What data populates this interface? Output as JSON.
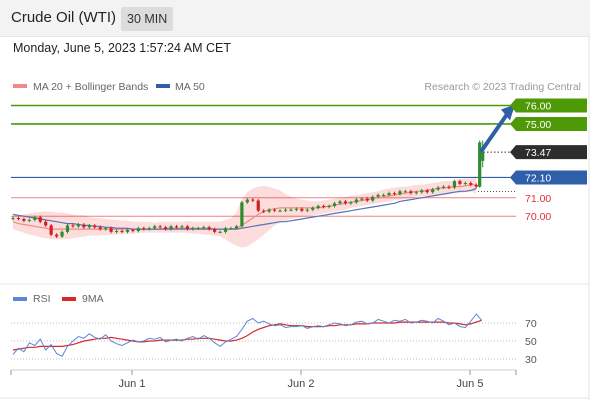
{
  "header": {
    "instrument": "Crude Oil (WTI)",
    "timeframe": "30 MIN"
  },
  "datetime": "Monday, June 5, 2023 1:57:24 AM CET",
  "colors": {
    "accent_green": "#4e9a06",
    "accent_blue": "#2f5fa8",
    "current_price_bg": "#2d2d2d",
    "support_red": "#e03131",
    "bollinger_fill": "#fbd7d5",
    "ma20": "#f08a86",
    "ma50": "#5674b8",
    "rsi": "#5b87d6",
    "rsi_ma": "#d62a2a",
    "candle_up": "#2e8b2e",
    "candle_down": "#d21f1f"
  },
  "chart_data": [
    {
      "type": "candlestick",
      "legend": [
        {
          "label": "MA 20 + Bollinger Bands",
          "icon": "pink-line-icon"
        },
        {
          "label": "MA 50",
          "icon": "blue-line-icon"
        }
      ],
      "watermark": "Research © 2023 Trading Central",
      "x_ticks": [
        "Jun 1",
        "Jun 2",
        "Jun 5"
      ],
      "current_price": 73.47,
      "levels": [
        {
          "value": 76.0,
          "label": "76.00",
          "kind": "resistance"
        },
        {
          "value": 75.0,
          "label": "75.00",
          "kind": "resistance"
        },
        {
          "value": 72.1,
          "label": "72.10",
          "kind": "pivot"
        },
        {
          "value": 71.0,
          "label": "71.00",
          "kind": "support"
        },
        {
          "value": 70.0,
          "label": "70.00",
          "kind": "support"
        }
      ],
      "close": [
        69.9,
        69.85,
        69.75,
        69.8,
        69.95,
        69.7,
        69.5,
        69.0,
        68.9,
        69.15,
        69.5,
        69.45,
        69.55,
        69.4,
        69.5,
        69.4,
        69.3,
        69.35,
        69.15,
        69.2,
        69.15,
        69.25,
        69.2,
        69.35,
        69.3,
        69.35,
        69.45,
        69.4,
        69.3,
        69.45,
        69.4,
        69.45,
        69.3,
        69.35,
        69.35,
        69.4,
        69.3,
        69.15,
        69.15,
        69.35,
        69.35,
        69.45,
        70.75,
        70.9,
        70.85,
        70.3,
        70.25,
        70.35,
        70.3,
        70.3,
        70.35,
        70.35,
        70.4,
        70.3,
        70.35,
        70.45,
        70.55,
        70.5,
        70.55,
        70.7,
        70.8,
        70.7,
        70.75,
        70.9,
        70.95,
        70.85,
        71.05,
        71.15,
        71.15,
        71.25,
        71.2,
        71.35,
        71.35,
        71.25,
        71.3,
        71.4,
        71.3,
        71.45,
        71.55,
        71.6,
        71.55,
        71.9,
        71.75,
        71.8,
        71.7,
        71.6
      ],
      "last_candle": {
        "open": 73.0,
        "high": 74.1,
        "low": 72.65,
        "close": 73.47
      },
      "bollinger_upper": [
        70.05,
        70.05,
        70.1,
        70.15,
        70.2,
        70.25,
        70.25,
        70.25,
        70.2,
        70.2,
        70.15,
        70.1,
        70.05,
        70.05,
        69.95,
        69.9,
        69.9,
        69.85,
        69.8,
        69.8,
        69.75,
        69.75,
        69.7,
        69.7,
        69.7,
        69.7,
        69.65,
        69.7,
        69.7,
        69.7,
        69.7,
        69.7,
        69.75,
        69.7,
        69.7,
        69.7,
        69.7,
        69.7,
        69.7,
        69.8,
        69.9,
        70.2,
        70.95,
        71.3,
        71.5,
        71.6,
        71.65,
        71.6,
        71.5,
        71.4,
        71.2,
        71.05,
        70.95,
        70.9,
        70.85,
        70.8,
        70.8,
        70.85,
        70.9,
        70.95,
        71.0,
        71.05,
        71.1,
        71.15,
        71.2,
        71.25,
        71.3,
        71.35,
        71.45,
        71.5,
        71.55,
        71.6,
        71.6,
        71.65,
        71.7,
        71.7,
        71.75,
        71.8,
        71.85,
        71.9,
        71.9,
        71.95,
        72.0,
        72.05,
        72.05,
        72.2
      ],
      "bollinger_lower": [
        69.3,
        69.2,
        69.1,
        69.0,
        68.95,
        68.85,
        68.8,
        68.75,
        68.75,
        68.75,
        68.75,
        68.8,
        68.85,
        68.9,
        68.95,
        68.95,
        68.95,
        69.0,
        69.0,
        69.0,
        69.05,
        69.05,
        69.05,
        69.1,
        69.1,
        69.1,
        69.1,
        69.1,
        69.1,
        69.1,
        69.1,
        69.1,
        69.1,
        69.05,
        69.05,
        69.0,
        69.0,
        68.95,
        68.9,
        68.75,
        68.55,
        68.4,
        68.3,
        68.35,
        68.55,
        68.75,
        69.0,
        69.25,
        69.5,
        69.65,
        69.75,
        69.85,
        69.9,
        69.95,
        70.0,
        70.05,
        70.1,
        70.15,
        70.2,
        70.25,
        70.3,
        70.35,
        70.45,
        70.5,
        70.55,
        70.6,
        70.65,
        70.7,
        70.75,
        70.8,
        70.85,
        70.9,
        70.95,
        71.0,
        71.05,
        71.05,
        71.1,
        71.1,
        71.15,
        71.2,
        71.2,
        71.25,
        71.25,
        71.3,
        71.35,
        71.2
      ],
      "ma20": [
        69.7,
        69.6,
        69.55,
        69.5,
        69.45,
        69.4,
        69.35,
        69.3,
        69.3,
        69.3,
        69.3,
        69.3,
        69.3,
        69.3,
        69.3,
        69.3,
        69.3,
        69.3,
        69.3,
        69.3,
        69.3,
        69.3,
        69.3,
        69.3,
        69.3,
        69.3,
        69.3,
        69.3,
        69.35,
        69.35,
        69.35,
        69.35,
        69.35,
        69.35,
        69.35,
        69.35,
        69.35,
        69.3,
        69.3,
        69.3,
        69.3,
        69.35,
        69.5,
        69.7,
        69.9,
        70.1,
        70.25,
        70.35,
        70.4,
        70.45,
        70.45,
        70.45,
        70.45,
        70.45,
        70.45,
        70.45,
        70.45,
        70.5,
        70.55,
        70.6,
        70.65,
        70.7,
        70.75,
        70.8,
        70.85,
        70.9,
        70.95,
        71.0,
        71.05,
        71.1,
        71.15,
        71.2,
        71.25,
        71.3,
        71.35,
        71.35,
        71.4,
        71.45,
        71.5,
        71.55,
        71.55,
        71.6,
        71.6,
        71.65,
        71.7,
        71.7
      ],
      "ma50": [
        70.1,
        70.05,
        70.0,
        69.95,
        69.9,
        69.85,
        69.8,
        69.75,
        69.7,
        69.65,
        69.6,
        69.6,
        69.55,
        69.5,
        69.5,
        69.45,
        69.45,
        69.4,
        69.4,
        69.35,
        69.35,
        69.35,
        69.3,
        69.3,
        69.3,
        69.3,
        69.3,
        69.3,
        69.3,
        69.3,
        69.3,
        69.3,
        69.3,
        69.3,
        69.3,
        69.3,
        69.3,
        69.3,
        69.3,
        69.3,
        69.3,
        69.3,
        69.35,
        69.4,
        69.45,
        69.5,
        69.55,
        69.6,
        69.65,
        69.7,
        69.7,
        69.75,
        69.8,
        69.85,
        69.9,
        69.95,
        70.0,
        70.05,
        70.1,
        70.15,
        70.2,
        70.25,
        70.3,
        70.35,
        70.4,
        70.45,
        70.5,
        70.55,
        70.6,
        70.65,
        70.7,
        70.8,
        70.85,
        70.9,
        70.95,
        71.0,
        71.05,
        71.1,
        71.15,
        71.2,
        71.25,
        71.3,
        71.35,
        71.35,
        71.4,
        71.5
      ],
      "target_arrow": {
        "from": 73.47,
        "to": 76.0
      }
    },
    {
      "type": "line",
      "legend": [
        {
          "label": "RSI",
          "icon": "blue-line-icon"
        },
        {
          "label": "9MA",
          "icon": "red-line-icon"
        }
      ],
      "y_ticks": [
        "70",
        "50",
        "30"
      ],
      "ylim": [
        20,
        85
      ],
      "series": [
        {
          "name": "RSI",
          "values": [
            35,
            42,
            38,
            48,
            45,
            52,
            40,
            46,
            36,
            33,
            44,
            50,
            55,
            53,
            58,
            54,
            52,
            57,
            50,
            47,
            45,
            48,
            51,
            49,
            50,
            53,
            52,
            54,
            49,
            51,
            52,
            50,
            53,
            55,
            52,
            56,
            53,
            48,
            44,
            49,
            52,
            55,
            63,
            72,
            75,
            70,
            72,
            69,
            67,
            68,
            65,
            66,
            66,
            67,
            64,
            66,
            67,
            66,
            68,
            70,
            69,
            67,
            68,
            71,
            72,
            69,
            70,
            74,
            72,
            70,
            73,
            72,
            74,
            70,
            71,
            73,
            72,
            70,
            75,
            72,
            68,
            70,
            66,
            65,
            72,
            80,
            73
          ]
        },
        {
          "name": "9MA",
          "values": [
            40,
            41,
            42,
            43,
            43,
            44,
            44,
            44,
            44,
            44,
            45,
            46,
            48,
            50,
            51,
            52,
            53,
            53,
            54,
            53,
            52,
            51,
            50,
            49,
            49,
            50,
            50,
            51,
            51,
            51,
            51,
            51,
            52,
            52,
            53,
            53,
            53,
            52,
            51,
            50,
            50,
            51,
            53,
            56,
            60,
            63,
            65,
            67,
            68,
            69,
            68,
            67,
            67,
            67,
            66,
            66,
            66,
            66,
            67,
            67,
            68,
            68,
            68,
            69,
            69,
            69,
            70,
            70,
            70,
            70,
            70,
            71,
            71,
            71,
            71,
            71,
            71,
            71,
            71,
            71,
            70,
            70,
            69,
            68,
            69,
            71,
            73
          ]
        }
      ]
    }
  ]
}
